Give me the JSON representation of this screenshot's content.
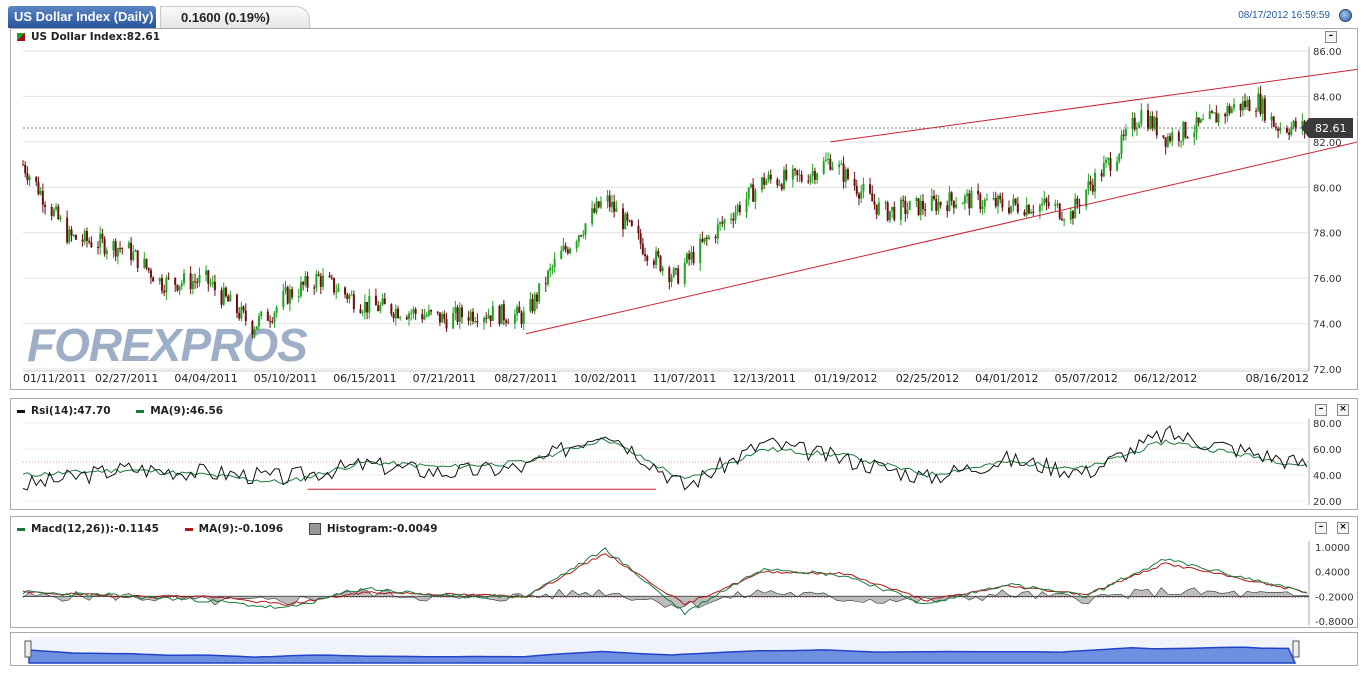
{
  "header": {
    "title": "US Dollar Index (Daily)",
    "change": "0.1600 (0.19%)",
    "datetime": "08/17/2012 16:59:59"
  },
  "watermark": "FOREXPROS",
  "colors": {
    "up": "#22a322",
    "down": "#6b0f0f",
    "trend": "#cc2233",
    "rsi": "#111111",
    "signal": "#1a7a3c",
    "macd": "#1a7a3c",
    "macd_ma": "#b01818",
    "hist": "#8a8a8a",
    "nav": "#6f8fe0"
  },
  "price_panel": {
    "label": "US Dollar Index:82.61",
    "last_tag": "82.61",
    "y_ticks": [
      "86.00",
      "84.00",
      "82.00",
      "80.00",
      "78.00",
      "76.00",
      "74.00",
      "72.00"
    ],
    "x_ticks": [
      "01/11/2011",
      "02/27/2011",
      "04/04/2011",
      "05/10/2011",
      "06/15/2011",
      "07/21/2011",
      "08/27/2011",
      "10/02/2011",
      "11/07/2011",
      "12/13/2011",
      "01/19/2012",
      "02/25/2012",
      "04/01/2012",
      "05/07/2012",
      "06/12/2012",
      "08/16/2012"
    ]
  },
  "rsi_panel": {
    "label_rsi": "Rsi(14):47.70",
    "label_ma": "MA(9):46.56",
    "y_ticks": [
      "80.00",
      "60.00",
      "40.00",
      "20.00"
    ]
  },
  "macd_panel": {
    "label_macd": "Macd(12,26)):-0.1145",
    "label_ma": "MA(9):-0.1096",
    "label_hist": "Histogram:-0.0049",
    "y_ticks": [
      "1.0000",
      "0.4000",
      "-0.2000",
      "-0.8000"
    ]
  },
  "buttons": {
    "minimize": "–",
    "close": "×"
  },
  "chart_data": [
    {
      "type": "candlestick",
      "title": "US Dollar Index (Daily)",
      "x_range": [
        "01/11/2011",
        "08/16/2012"
      ],
      "ylim": [
        72,
        86
      ],
      "last": 82.61,
      "y_ticks": [
        72,
        74,
        76,
        78,
        80,
        82,
        84,
        86
      ],
      "close_series": {
        "x": [
          "01/11/2011",
          "02/01/2011",
          "02/27/2011",
          "03/15/2011",
          "04/04/2011",
          "04/25/2011",
          "05/04/2011",
          "05/10/2011",
          "05/25/2011",
          "06/15/2011",
          "07/01/2011",
          "07/21/2011",
          "08/05/2011",
          "08/27/2011",
          "09/10/2011",
          "10/02/2011",
          "10/20/2011",
          "11/03/2011",
          "11/07/2011",
          "11/25/2011",
          "12/13/2011",
          "12/30/2011",
          "01/12/2012",
          "01/19/2012",
          "02/05/2012",
          "02/25/2012",
          "03/10/2012",
          "04/01/2012",
          "04/20/2012",
          "04/30/2012",
          "05/07/2012",
          "05/20/2012",
          "06/01/2012",
          "06/12/2012",
          "06/28/2012",
          "07/12/2012",
          "07/24/2012",
          "08/01/2012",
          "08/16/2012"
        ],
        "y": [
          81.0,
          77.8,
          77.3,
          75.8,
          75.9,
          73.9,
          74.5,
          75.2,
          76.0,
          74.8,
          74.6,
          74.2,
          74.5,
          74.3,
          76.8,
          79.5,
          77.3,
          76.0,
          76.6,
          78.5,
          80.3,
          80.4,
          81.2,
          80.5,
          78.9,
          79.2,
          79.5,
          79.2,
          79.2,
          78.8,
          79.9,
          81.4,
          83.3,
          82.2,
          82.7,
          83.5,
          83.8,
          82.7,
          82.6
        ]
      },
      "trend_lines": [
        {
          "from": [
            "08/27/2011",
            73.55
          ],
          "to": [
            "08/16/2012",
            81.5
          ]
        },
        {
          "from": [
            "01/12/2012",
            82.0
          ],
          "to": [
            "08/16/2012",
            84.9
          ]
        }
      ]
    },
    {
      "type": "line",
      "title": "Rsi(14)",
      "ylim": [
        20,
        80
      ],
      "y_ticks": [
        20,
        40,
        60,
        80
      ],
      "series": [
        {
          "name": "Rsi(14)",
          "x": [
            "01/11/2011",
            "02/27/2011",
            "04/04/2011",
            "05/10/2011",
            "06/15/2011",
            "07/21/2011",
            "08/27/2011",
            "10/02/2011",
            "11/07/2011",
            "12/13/2011",
            "01/19/2012",
            "02/25/2012",
            "04/01/2012",
            "05/07/2012",
            "06/12/2012",
            "08/16/2012"
          ],
          "y": [
            32,
            45,
            42,
            38,
            48,
            42,
            46,
            75,
            31,
            65,
            52,
            38,
            52,
            42,
            72,
            47.7
          ]
        },
        {
          "name": "MA(9)",
          "x": [
            "01/11/2011",
            "02/27/2011",
            "04/04/2011",
            "05/10/2011",
            "06/15/2011",
            "07/21/2011",
            "08/27/2011",
            "10/02/2011",
            "11/07/2011",
            "12/13/2011",
            "01/19/2012",
            "02/25/2012",
            "04/01/2012",
            "05/07/2012",
            "06/12/2012",
            "08/16/2012"
          ],
          "y": [
            40,
            44,
            40,
            34,
            50,
            46,
            50,
            68,
            36,
            60,
            55,
            40,
            50,
            45,
            66,
            46.56
          ]
        }
      ]
    },
    {
      "type": "line",
      "title": "Macd(12,26)",
      "ylim": [
        -0.8,
        1.0
      ],
      "y_ticks": [
        -0.8,
        -0.2,
        0.4,
        1.0
      ],
      "series": [
        {
          "name": "Macd(12,26))",
          "x": [
            "01/11/2011",
            "02/27/2011",
            "04/04/2011",
            "05/10/2011",
            "06/15/2011",
            "07/21/2011",
            "08/27/2011",
            "10/02/2011",
            "11/07/2011",
            "12/13/2011",
            "01/19/2012",
            "02/25/2012",
            "04/01/2012",
            "05/07/2012",
            "06/12/2012",
            "08/16/2012"
          ],
          "y": [
            -0.1,
            -0.2,
            -0.3,
            -0.5,
            0.0,
            -0.2,
            -0.2,
            0.95,
            -0.6,
            0.5,
            0.3,
            -0.4,
            0.1,
            -0.2,
            0.7,
            -0.1145
          ]
        },
        {
          "name": "MA(9)",
          "x": [
            "01/11/2011",
            "02/27/2011",
            "04/04/2011",
            "05/10/2011",
            "06/15/2011",
            "07/21/2011",
            "08/27/2011",
            "10/02/2011",
            "11/07/2011",
            "12/13/2011",
            "01/19/2012",
            "02/25/2012",
            "04/01/2012",
            "05/07/2012",
            "06/12/2012",
            "08/16/2012"
          ],
          "y": [
            -0.1,
            -0.2,
            -0.2,
            -0.4,
            -0.1,
            -0.15,
            -0.2,
            0.85,
            -0.4,
            0.4,
            0.35,
            -0.3,
            0.05,
            -0.15,
            0.6,
            -0.1096
          ]
        }
      ]
    }
  ]
}
